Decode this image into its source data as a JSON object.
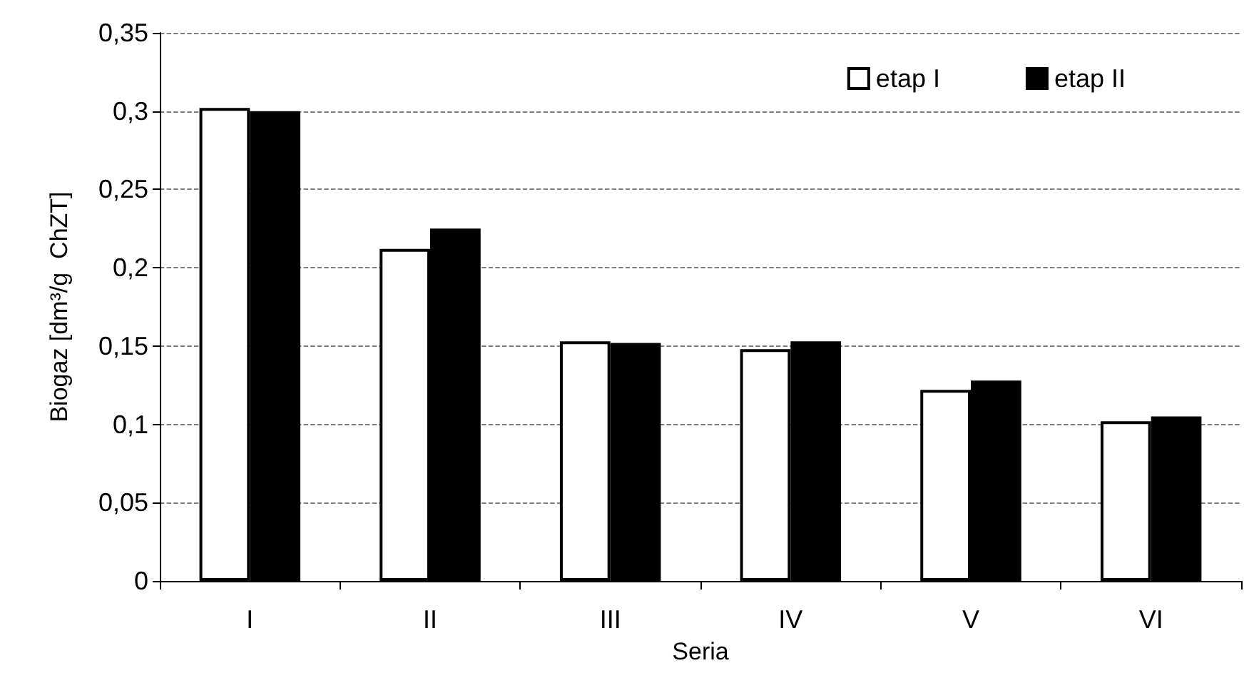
{
  "chart_data": {
    "type": "bar",
    "xlabel": "Seria",
    "ylabel": "Biogaz [dm³/g  ChZT]",
    "categories": [
      "I",
      "II",
      "III",
      "IV",
      "V",
      "VI"
    ],
    "series": [
      {
        "name": "etap I",
        "color": "#ffffff",
        "values": [
          0.302,
          0.212,
          0.153,
          0.148,
          0.122,
          0.102
        ]
      },
      {
        "name": "etap II",
        "color": "#000000",
        "values": [
          0.3,
          0.225,
          0.152,
          0.153,
          0.128,
          0.105
        ]
      }
    ],
    "ylim": [
      0,
      0.35
    ],
    "yticks": [
      {
        "value": 0,
        "label": "0"
      },
      {
        "value": 0.05,
        "label": "0,05"
      },
      {
        "value": 0.1,
        "label": "0,1"
      },
      {
        "value": 0.15,
        "label": "0,15"
      },
      {
        "value": 0.2,
        "label": "0,2"
      },
      {
        "value": 0.25,
        "label": "0,25"
      },
      {
        "value": 0.3,
        "label": "0,3"
      },
      {
        "value": 0.35,
        "label": "0,35"
      }
    ],
    "grid": "y",
    "legend": "top right"
  }
}
